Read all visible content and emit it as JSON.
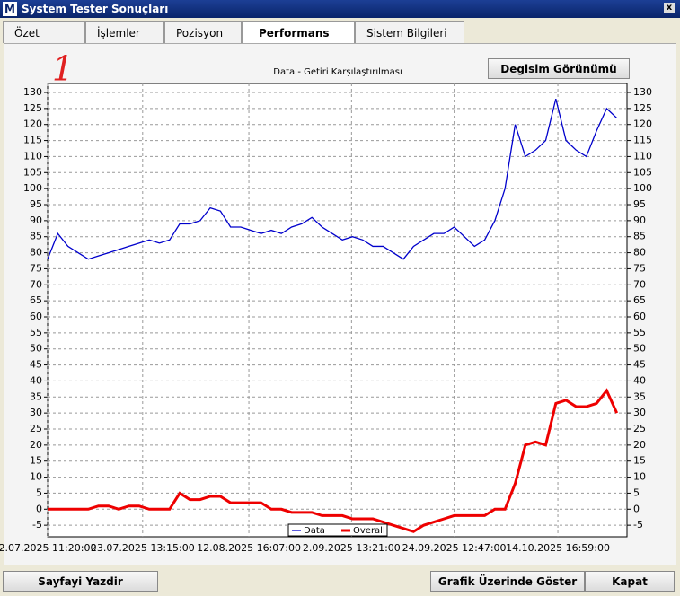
{
  "window": {
    "title": "System Tester Sonuçları",
    "close": "x"
  },
  "tabs": [
    "Özet",
    "İşlemler",
    "Pozisyon",
    "Performans",
    "Sistem Bilgileri"
  ],
  "active_tab": 3,
  "toolbar_button": "Degisim Görünümü",
  "annotation": "1",
  "buttons": [
    "Sayfayi Yazdir",
    "Grafik Üzerinde Göster",
    "Kapat"
  ],
  "chart_data": {
    "type": "line",
    "title": "Data - Getiri Karşılaştırılması",
    "x": [
      0,
      1,
      2,
      3,
      4,
      5,
      6,
      7,
      8,
      9,
      10,
      11,
      12,
      13,
      14,
      15,
      16,
      17,
      18,
      19,
      20,
      21,
      22,
      23,
      24,
      25,
      26,
      27,
      28,
      29,
      30,
      31,
      32,
      33,
      34,
      35,
      36,
      37,
      38,
      39,
      40,
      41,
      42,
      43,
      44,
      45,
      46,
      47,
      48,
      49,
      50,
      51,
      52,
      53,
      54,
      55,
      56
    ],
    "series": [
      {
        "name": "Data",
        "color": "#0000cc",
        "values": [
          78,
          86,
          82,
          80,
          78,
          79,
          80,
          81,
          82,
          83,
          84,
          83,
          84,
          89,
          89,
          90,
          94,
          93,
          88,
          88,
          87,
          86,
          87,
          86,
          88,
          89,
          91,
          88,
          86,
          84,
          85,
          84,
          82,
          82,
          80,
          78,
          82,
          84,
          86,
          86,
          88,
          85,
          82,
          84,
          90,
          100,
          120,
          110,
          112,
          115,
          128,
          115,
          112,
          110,
          118,
          125,
          122
        ]
      },
      {
        "name": "Overall",
        "color": "#ee0000",
        "values": [
          0,
          0,
          0,
          0,
          0,
          1,
          1,
          0,
          1,
          1,
          0,
          0,
          0,
          5,
          3,
          3,
          4,
          4,
          2,
          2,
          2,
          2,
          0,
          0,
          -1,
          -1,
          -1,
          -2,
          -2,
          -2,
          -3,
          -3,
          -3,
          -4,
          -5,
          -6,
          -7,
          -5,
          -4,
          -3,
          -2,
          -2,
          -2,
          -2,
          0,
          0,
          8,
          20,
          21,
          20,
          33,
          34,
          32,
          32,
          33,
          37,
          30
        ]
      }
    ],
    "xlim": [
      0,
      57
    ],
    "xticks": [
      {
        "value": 0,
        "label": "2.07.2025 11:20:00"
      },
      {
        "value": 9.35,
        "label": "23.07.2025 13:15:00"
      },
      {
        "value": 19.8,
        "label": "12.08.2025 16:07:00"
      },
      {
        "value": 29.9,
        "label": "2.09.2025 13:21:00"
      },
      {
        "value": 40,
        "label": "24.09.2025 12:47:00"
      },
      {
        "value": 50.2,
        "label": "14.10.2025 16:59:00"
      }
    ],
    "ylim": [
      -8.6,
      132.8
    ],
    "yticks": [
      -5,
      0,
      5,
      10,
      15,
      20,
      25,
      30,
      35,
      40,
      45,
      50,
      55,
      60,
      65,
      70,
      75,
      80,
      85,
      90,
      95,
      100,
      105,
      110,
      115,
      120,
      125,
      130
    ],
    "grid": true,
    "legend": "bottom"
  }
}
